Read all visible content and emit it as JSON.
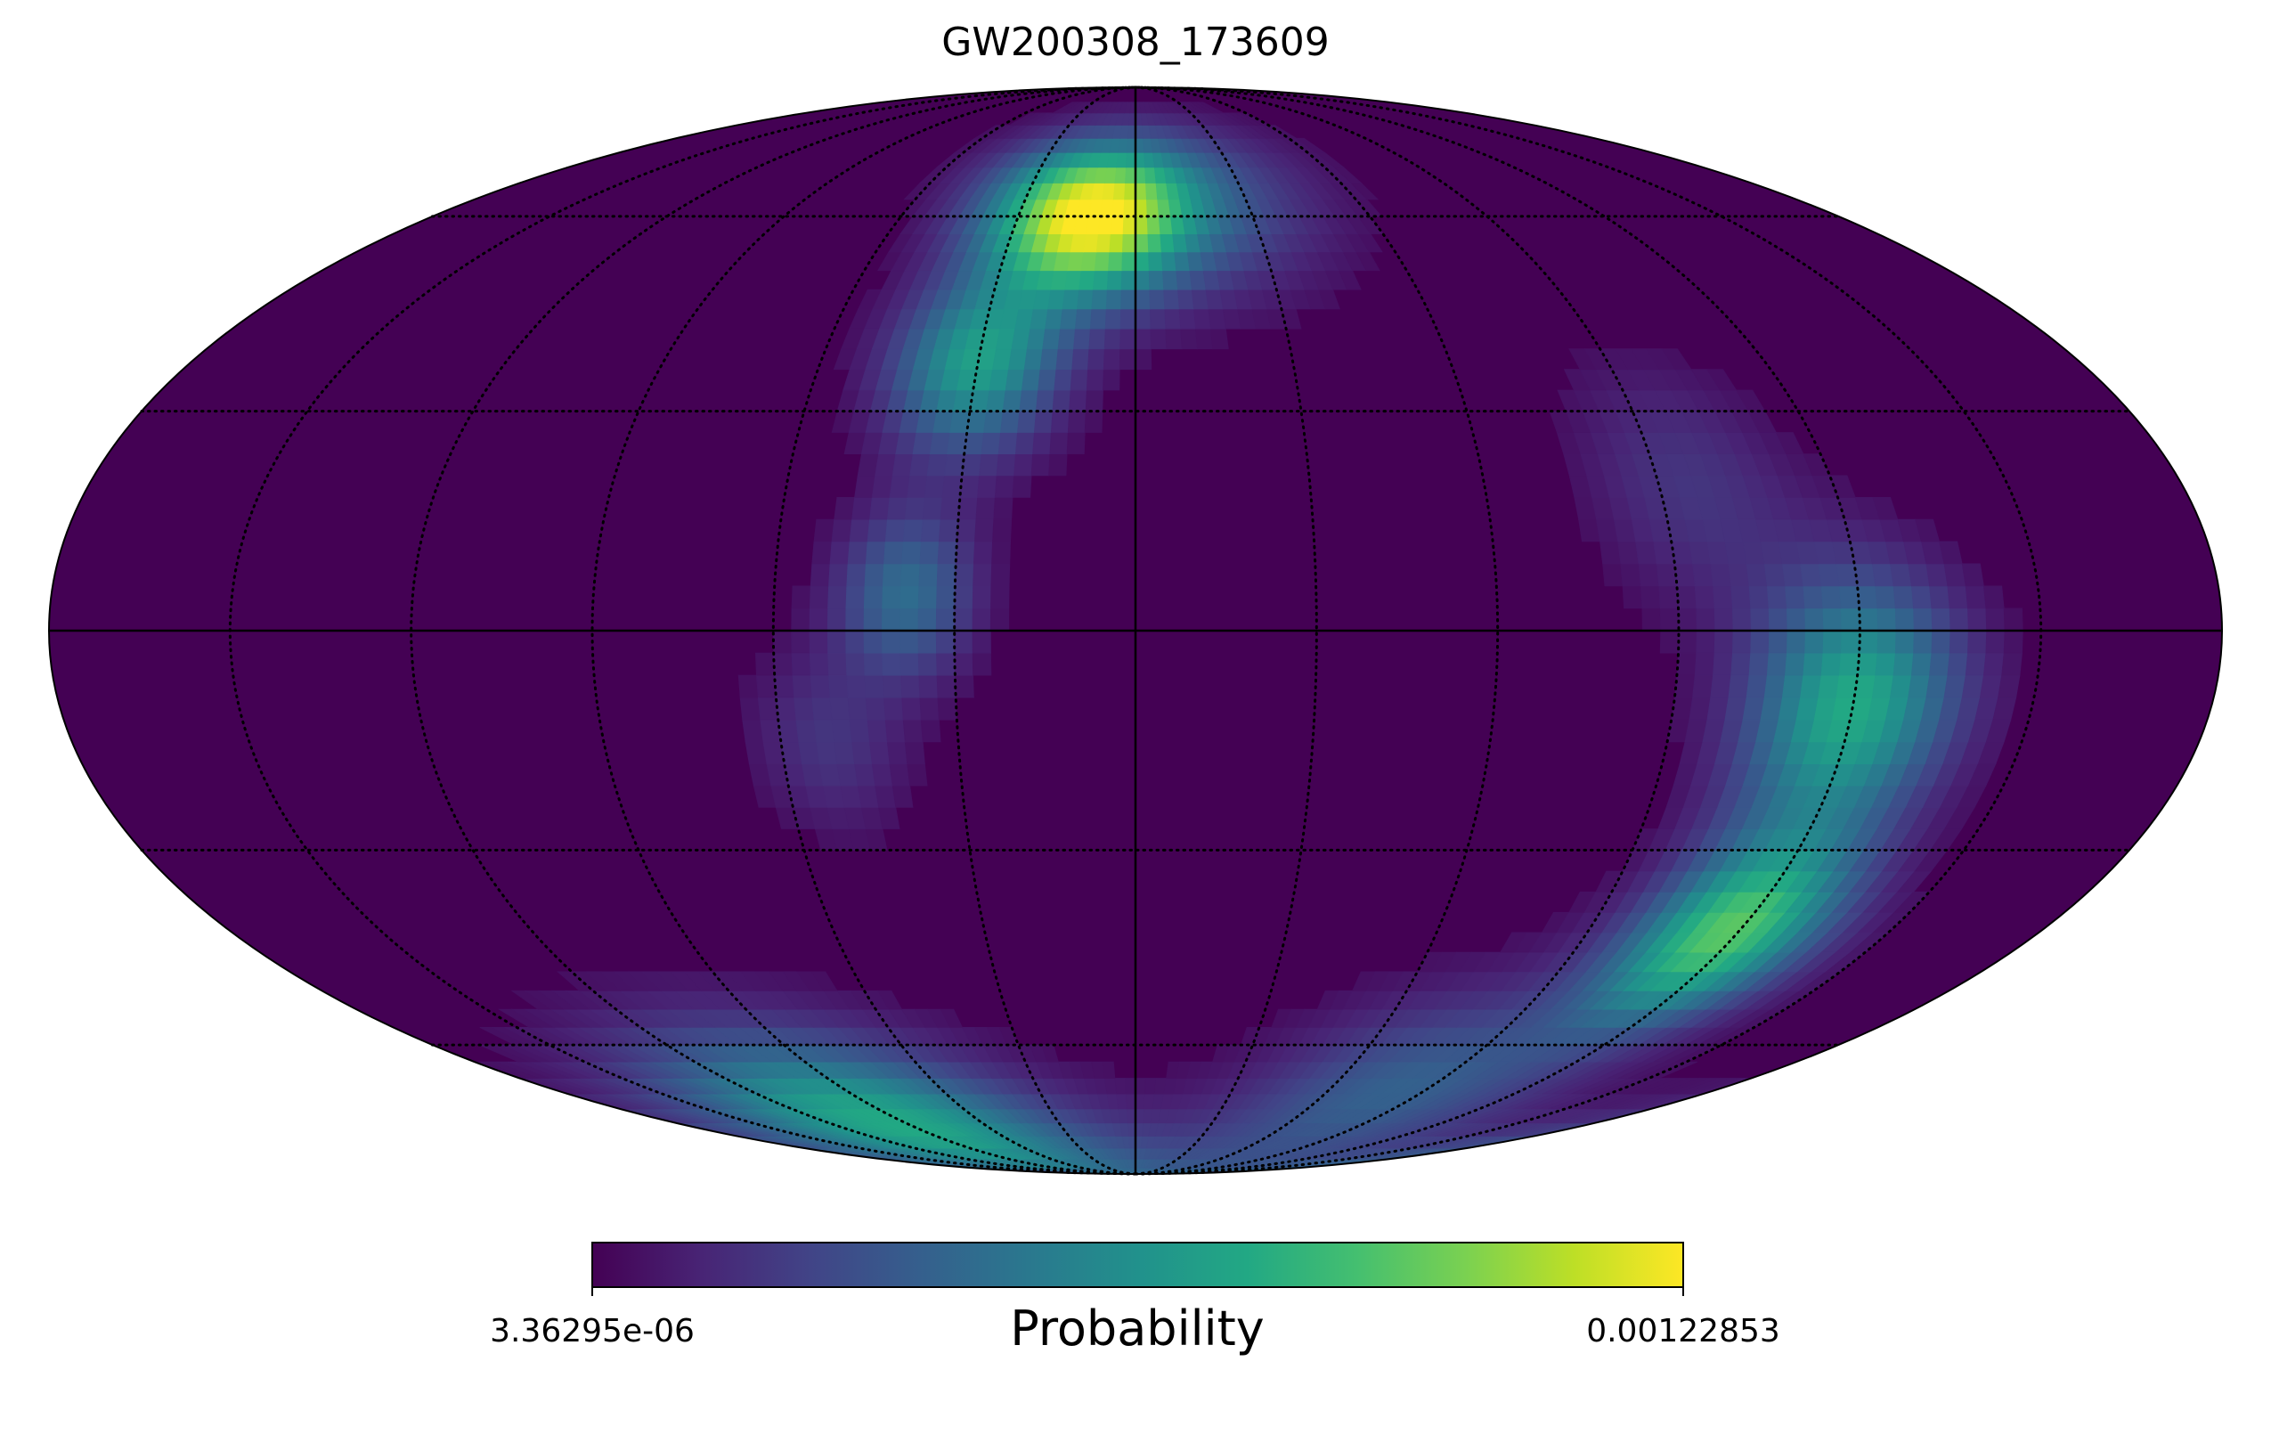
{
  "chart_data": {
    "type": "heatmap",
    "projection": "mollweide",
    "title": "GW200308_173609",
    "colorbar": {
      "label": "Probability",
      "min_label": "3.36295e-06",
      "max_label": "0.00122853",
      "min": 3.36295e-06,
      "max": 0.00122853,
      "colormap": "viridis"
    },
    "grid": {
      "graticule": "dotted",
      "longitude_lines_deg": [
        -150,
        -120,
        -90,
        -60,
        -30,
        30,
        60,
        90,
        120,
        150
      ],
      "latitude_lines_deg": [
        -60,
        -30,
        30,
        60
      ],
      "central_meridian_and_equator": "solid"
    },
    "hotspots": [
      {
        "lon": -12,
        "lat": 60,
        "width": 9,
        "weight": 1.0
      },
      {
        "lon": -30,
        "lat": 37,
        "width": 9,
        "weight": 0.55
      },
      {
        "lon": -38,
        "lat": 5,
        "width": 8,
        "weight": 0.35
      },
      {
        "lon": -52,
        "lat": -15,
        "width": 9,
        "weight": 0.15
      },
      {
        "lon": 20,
        "lat": 62,
        "width": 11,
        "weight": 0.2
      },
      {
        "lon": 95,
        "lat": 20,
        "width": 12,
        "weight": 0.15
      },
      {
        "lon": 120,
        "lat": -10,
        "width": 12,
        "weight": 0.6
      },
      {
        "lon": 118,
        "lat": -42,
        "width": 10,
        "weight": 0.72
      },
      {
        "lon": 80,
        "lat": -68,
        "width": 12,
        "weight": 0.3
      },
      {
        "lon": -95,
        "lat": -75,
        "width": 12,
        "weight": 0.6
      }
    ]
  }
}
